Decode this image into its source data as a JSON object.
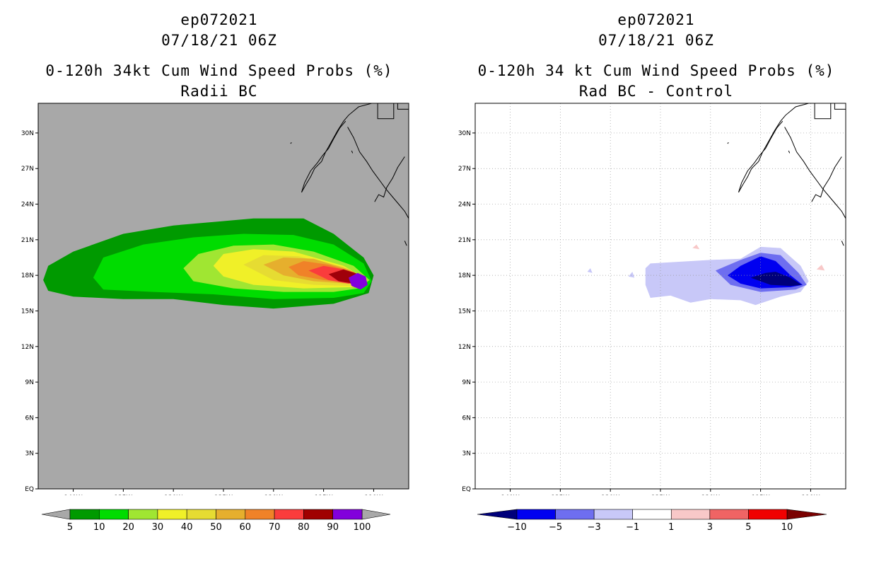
{
  "chart_data": [
    {
      "type": "heatmap",
      "storm_id": "ep072021",
      "datetime": "07/18/21 06Z",
      "title": "0-120h 34kt Cum Wind Speed Probs (%)",
      "subtitle": "Radii BC",
      "background_color": "#a8a8a8",
      "grid": false,
      "xlim": [
        -143.5,
        -106.5
      ],
      "ylim": [
        0,
        32.5
      ],
      "lon_ticks": [
        "140W",
        "135W",
        "130W",
        "125W",
        "120W",
        "115W",
        "110W"
      ],
      "lat_ticks": [
        "EQ",
        "3N",
        "6N",
        "9N",
        "12N",
        "15N",
        "18N",
        "21N",
        "24N",
        "27N",
        "30N"
      ],
      "colorbar": {
        "labels": [
          "5",
          "10",
          "20",
          "30",
          "40",
          "50",
          "60",
          "70",
          "80",
          "90",
          "100"
        ],
        "colors": [
          "#009a00",
          "#00dc00",
          "#a0e632",
          "#f0f028",
          "#e6dc32",
          "#e6af2d",
          "#f08228",
          "#fa3c3c",
          "#a00000",
          "#8200dc"
        ],
        "extend_low_color": "#a8a8a8",
        "extend_high_color": "#a8a8a8"
      },
      "contours": [
        {
          "level": 5,
          "color": "#009a00",
          "points": [
            [
              -143,
              17.6
            ],
            [
              -142.5,
              18.8
            ],
            [
              -140,
              20
            ],
            [
              -135,
              21.5
            ],
            [
              -130,
              22.2
            ],
            [
              -126,
              22.5
            ],
            [
              -122,
              22.8
            ],
            [
              -117,
              22.8
            ],
            [
              -114,
              21.5
            ],
            [
              -111,
              19.5
            ],
            [
              -110,
              18
            ],
            [
              -110.5,
              16.5
            ],
            [
              -114,
              15.6
            ],
            [
              -120,
              15.2
            ],
            [
              -125,
              15.5
            ],
            [
              -130,
              16
            ],
            [
              -135,
              16
            ],
            [
              -140,
              16.2
            ],
            [
              -142.5,
              16.7
            ]
          ]
        },
        {
          "level": 10,
          "color": "#00dc00",
          "points": [
            [
              -138,
              17.8
            ],
            [
              -137,
              19.5
            ],
            [
              -133,
              20.6
            ],
            [
              -128,
              21.2
            ],
            [
              -123,
              21.5
            ],
            [
              -118,
              21.4
            ],
            [
              -114,
              20.6
            ],
            [
              -111,
              19
            ],
            [
              -110.2,
              17.5
            ],
            [
              -111,
              16.5
            ],
            [
              -114,
              16.1
            ],
            [
              -120,
              16
            ],
            [
              -126,
              16.4
            ],
            [
              -132,
              16.6
            ],
            [
              -137,
              16.8
            ]
          ]
        },
        {
          "level": 20,
          "color": "#a0e632",
          "points": [
            [
              -129,
              18.6
            ],
            [
              -127.5,
              19.8
            ],
            [
              -124,
              20.5
            ],
            [
              -120,
              20.6
            ],
            [
              -116,
              20
            ],
            [
              -112,
              18.8
            ],
            [
              -110.4,
              17.6
            ],
            [
              -111.5,
              16.9
            ],
            [
              -114,
              16.6
            ],
            [
              -119,
              16.6
            ],
            [
              -124,
              16.9
            ],
            [
              -128,
              17.5
            ]
          ]
        },
        {
          "level": 30,
          "color": "#f0f028",
          "points": [
            [
              -126,
              18.8
            ],
            [
              -125,
              19.8
            ],
            [
              -122,
              20.2
            ],
            [
              -118,
              20
            ],
            [
              -113,
              18.8
            ],
            [
              -110.6,
              17.6
            ],
            [
              -112,
              17
            ],
            [
              -117,
              16.9
            ],
            [
              -122,
              17.2
            ],
            [
              -125,
              17.9
            ]
          ]
        },
        {
          "level": 40,
          "color": "#e6dc32",
          "points": [
            [
              -123,
              18.9
            ],
            [
              -121,
              19.7
            ],
            [
              -117.5,
              19.6
            ],
            [
              -113,
              18.7
            ],
            [
              -110.7,
              17.6
            ],
            [
              -112,
              17.1
            ],
            [
              -116,
              17.2
            ],
            [
              -120,
              17.6
            ]
          ]
        },
        {
          "level": 50,
          "color": "#e6af2d",
          "points": [
            [
              -121,
              18.9
            ],
            [
              -119,
              19.5
            ],
            [
              -116,
              19.4
            ],
            [
              -112.5,
              18.5
            ],
            [
              -110.8,
              17.6
            ],
            [
              -112.5,
              17.3
            ],
            [
              -116,
              17.5
            ],
            [
              -119,
              18
            ]
          ]
        },
        {
          "level": 60,
          "color": "#f08228",
          "points": [
            [
              -118.5,
              18.7
            ],
            [
              -117,
              19.2
            ],
            [
              -114.5,
              18.9
            ],
            [
              -112,
              18.3
            ],
            [
              -110.8,
              17.6
            ],
            [
              -112.5,
              17.4
            ],
            [
              -115,
              17.6
            ],
            [
              -117.5,
              18
            ]
          ]
        },
        {
          "level": 70,
          "color": "#fa3c3c",
          "points": [
            [
              -116.5,
              18.4
            ],
            [
              -115,
              18.8
            ],
            [
              -113,
              18.5
            ],
            [
              -111,
              17.8
            ],
            [
              -110.8,
              17.4
            ],
            [
              -112.5,
              17.3
            ],
            [
              -114.5,
              17.6
            ]
          ]
        },
        {
          "level": 80,
          "color": "#a0000a",
          "points": [
            [
              -114.5,
              18.1
            ],
            [
              -113,
              18.5
            ],
            [
              -111.5,
              18.1
            ],
            [
              -110.8,
              17.5
            ],
            [
              -112,
              17.3
            ],
            [
              -113.5,
              17.5
            ]
          ]
        },
        {
          "level": 90,
          "color": "#8200dc",
          "points": [
            [
              -112.5,
              17.8
            ],
            [
              -111.6,
              18.2
            ],
            [
              -110.8,
              17.9
            ],
            [
              -110.6,
              17.2
            ],
            [
              -111.3,
              16.8
            ],
            [
              -112.2,
              17.1
            ]
          ]
        }
      ]
    },
    {
      "type": "heatmap",
      "storm_id": "ep072021",
      "datetime": "07/18/21 06Z",
      "title": "0-120h 34 kt Cum Wind Speed Probs (%)",
      "subtitle": "Rad BC - Control",
      "background_color": "#ffffff",
      "grid": true,
      "xlim": [
        -143.5,
        -106.5
      ],
      "ylim": [
        0,
        32.5
      ],
      "lon_ticks": [
        "140W",
        "135W",
        "130W",
        "125W",
        "120W",
        "115W",
        "110W"
      ],
      "lat_ticks": [
        "EQ",
        "3N",
        "6N",
        "9N",
        "12N",
        "15N",
        "18N",
        "21N",
        "24N",
        "27N",
        "30N"
      ],
      "colorbar": {
        "labels": [
          "-10",
          "-5",
          "-3",
          "-1",
          "1",
          "3",
          "5",
          "10"
        ],
        "colors": [
          "#0000f0",
          "#6e6ef0",
          "#c8c8f8",
          "#ffffff",
          "#f8c8c8",
          "#f06464",
          "#f00000"
        ],
        "extend_low_color": "#00007a",
        "extend_high_color": "#7a0000"
      },
      "contours": [
        {
          "level": -1,
          "color": "#c8c8f8",
          "points": [
            [
              -126.5,
              18.6
            ],
            [
              -126,
              19
            ],
            [
              -120,
              19.3
            ],
            [
              -117,
              19.4
            ],
            [
              -115,
              20.4
            ],
            [
              -113,
              20.3
            ],
            [
              -111,
              18.8
            ],
            [
              -110.2,
              17.5
            ],
            [
              -111,
              16.6
            ],
            [
              -113,
              16.2
            ],
            [
              -115.5,
              15.5
            ],
            [
              -117,
              15.9
            ],
            [
              -120,
              16
            ],
            [
              -122,
              15.7
            ],
            [
              -124,
              16.3
            ],
            [
              -126,
              16.1
            ],
            [
              -126.5,
              17.2
            ]
          ]
        },
        {
          "level": -1,
          "color": "#c8c8f8",
          "points": [
            [
              -132.3,
              18.3
            ],
            [
              -132,
              18.6
            ],
            [
              -131.8,
              18.2
            ]
          ]
        },
        {
          "level": -1,
          "color": "#c8c8f8",
          "points": [
            [
              -128.2,
              17.9
            ],
            [
              -127.8,
              18.3
            ],
            [
              -127.6,
              17.8
            ]
          ]
        },
        {
          "level": -3,
          "color": "#6e6ef0",
          "points": [
            [
              -119.5,
              18.4
            ],
            [
              -117,
              19.3
            ],
            [
              -115,
              19.9
            ],
            [
              -113,
              19.7
            ],
            [
              -111.2,
              18.2
            ],
            [
              -110.4,
              17.2
            ],
            [
              -111.5,
              16.8
            ],
            [
              -115,
              16.6
            ],
            [
              -118,
              17.2
            ]
          ]
        },
        {
          "level": -5,
          "color": "#0000f0",
          "points": [
            [
              -118.3,
              18
            ],
            [
              -117,
              18.8
            ],
            [
              -115,
              19.6
            ],
            [
              -113.5,
              19.2
            ],
            [
              -112,
              18
            ],
            [
              -110.8,
              17.2
            ],
            [
              -112,
              17
            ],
            [
              -115,
              16.9
            ],
            [
              -117,
              17.3
            ]
          ]
        },
        {
          "level": -10,
          "color": "#00007a",
          "points": [
            [
              -116,
              17.8
            ],
            [
              -114.5,
              18.2
            ],
            [
              -113.5,
              18.3
            ],
            [
              -112,
              17.8
            ],
            [
              -110.9,
              17.2
            ],
            [
              -112,
              17.1
            ],
            [
              -114,
              17.2
            ]
          ]
        },
        {
          "level": 1,
          "color": "#f8c8c8",
          "points": [
            [
              -109.4,
              18.5
            ],
            [
              -108.9,
              18.9
            ],
            [
              -108.6,
              18.4
            ]
          ]
        },
        {
          "level": 1,
          "color": "#f8c8c8",
          "points": [
            [
              -121.8,
              20.3
            ],
            [
              -121.4,
              20.6
            ],
            [
              -121.1,
              20.2
            ]
          ]
        }
      ]
    }
  ]
}
